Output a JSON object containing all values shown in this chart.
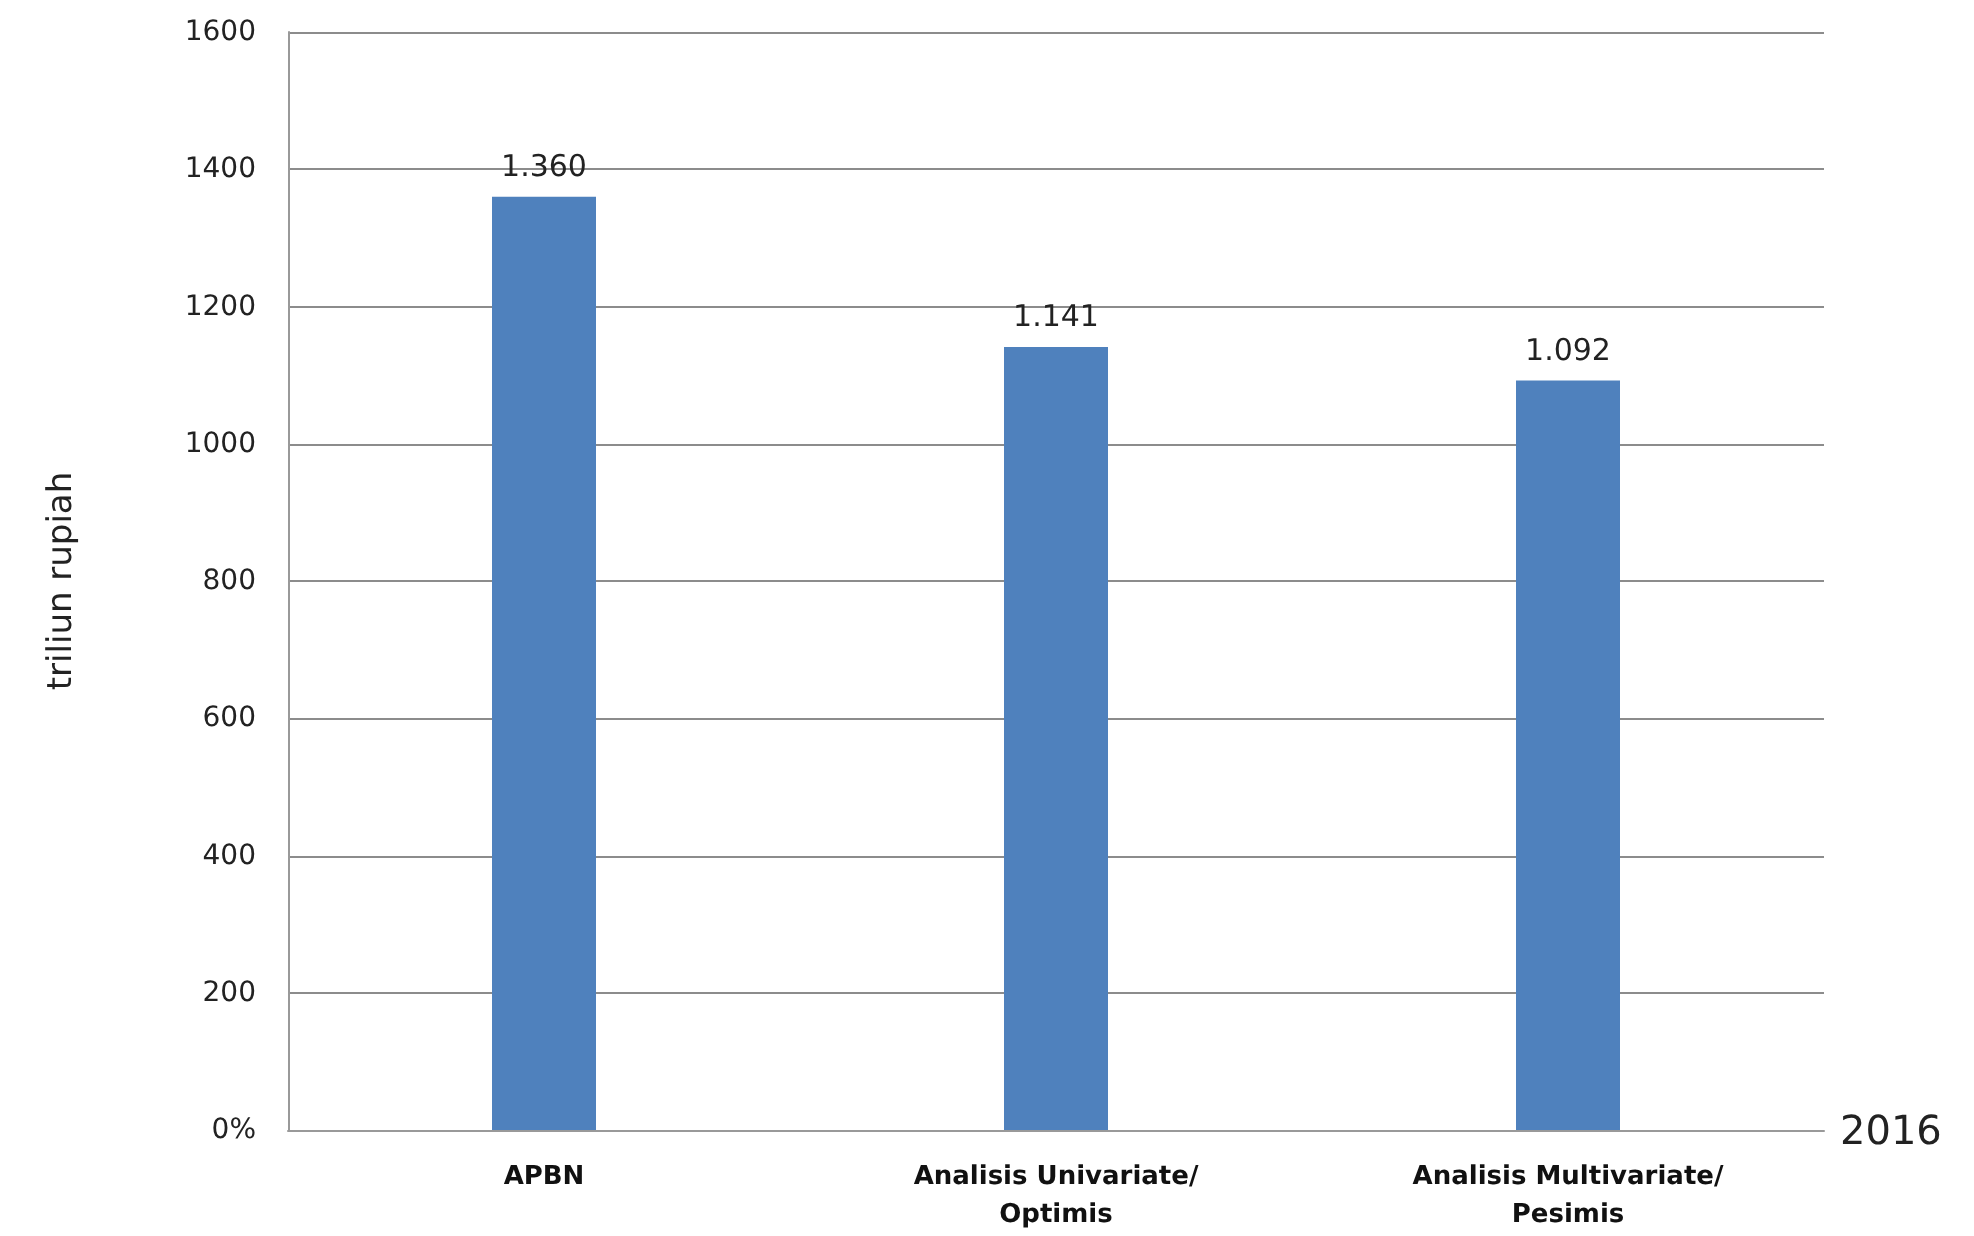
{
  "chart_data": {
    "type": "bar",
    "ylabel": "triliun rupiah",
    "xlabel": "2016",
    "categories": [
      "APBN",
      "Analisis Univariate/\nOptimis",
      "Analisis Multivariate/\nPesimis"
    ],
    "values": [
      1360,
      1141,
      1092
    ],
    "value_labels": [
      "1.360",
      "1.141",
      "1.092"
    ],
    "color": "#4f81bd",
    "ylim": [
      0,
      1600
    ],
    "yticks": [
      {
        "value": 0,
        "label": "0%"
      },
      200,
      400,
      600,
      800,
      1000,
      1200,
      1400,
      1600
    ],
    "grid": "y"
  }
}
